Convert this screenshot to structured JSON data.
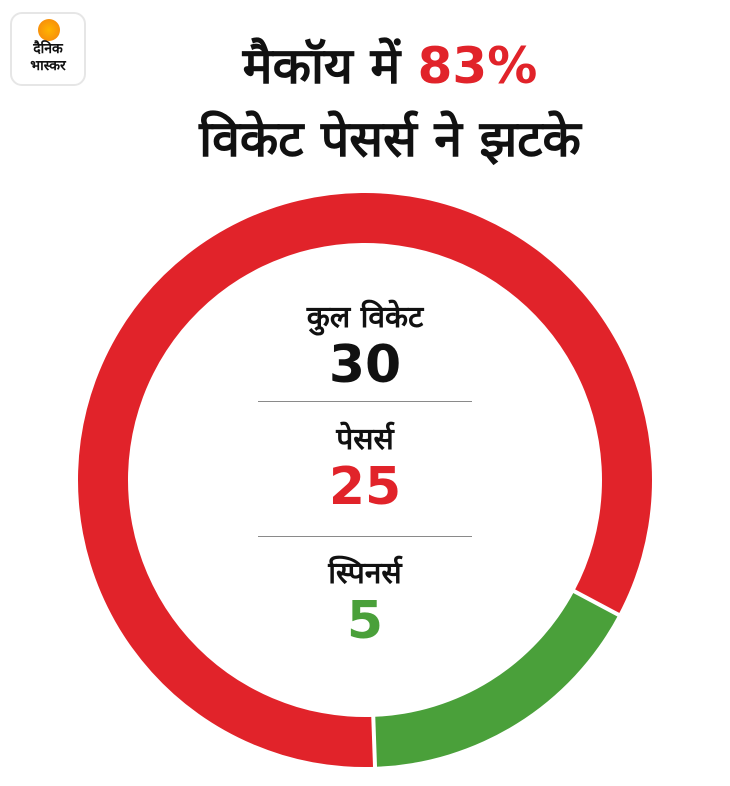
{
  "brand": {
    "line1": "दैनिक",
    "line2": "भास्कर"
  },
  "headline": {
    "line1_prefix": "मैकॉय में ",
    "line1_highlight": "83%",
    "line2": "विकेट पेसर्स ने झटके"
  },
  "stats": {
    "total_label": "कुल विकेट",
    "total_value": "30",
    "pacers_label": "पेसर्स",
    "pacers_value": "25",
    "spinners_label": "स्पिनर्स",
    "spinners_value": "5"
  },
  "colors": {
    "pacers": "#e1232a",
    "spinners": "#4aa03a",
    "separator": "#ffffff"
  },
  "chart_data": {
    "type": "pie",
    "style": "donut",
    "title": "मैकॉय में 83% विकेट पेसर्स ने झटके",
    "categories": [
      "पेसर्स",
      "स्पिनर्स"
    ],
    "values": [
      25,
      5
    ],
    "total": 30
  }
}
